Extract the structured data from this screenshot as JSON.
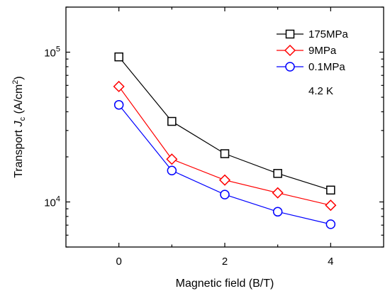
{
  "chart_data": {
    "type": "line",
    "xlabel": "Magnetic field (B/T)",
    "ylabel": {
      "prefix": "Transport ",
      "symbol": "J",
      "subscript": "c",
      "units_open": " (A/cm",
      "units_power": "2",
      "units_close": ")"
    },
    "x_ticks": [
      0,
      1,
      2,
      3,
      4
    ],
    "x_tick_labels": [
      "0",
      "2",
      "4"
    ],
    "x_tick_label_values": [
      0,
      2,
      4
    ],
    "xlim": [
      -1,
      5
    ],
    "y_scale": "log",
    "ylim": [
      5000,
      200000
    ],
    "y_tick_labels": [
      {
        "value": 10000,
        "base": "10",
        "exp": "4"
      },
      {
        "value": 100000,
        "base": "10",
        "exp": "5"
      }
    ],
    "annotation": "4.2 K",
    "legend_position": "top-right",
    "grid": false,
    "x": [
      0,
      1,
      2,
      3,
      4
    ],
    "series": [
      {
        "name": "175MPa",
        "marker": "square",
        "color": "#000000",
        "values": [
          93000,
          34500,
          21000,
          15500,
          12000
        ]
      },
      {
        "name": "9MPa",
        "marker": "diamond",
        "color": "#ff0000",
        "values": [
          59000,
          19300,
          14000,
          11500,
          9500
        ]
      },
      {
        "name": "0.1MPa",
        "marker": "circle",
        "color": "#0000ff",
        "values": [
          44500,
          16200,
          11200,
          8600,
          7100
        ]
      }
    ]
  }
}
